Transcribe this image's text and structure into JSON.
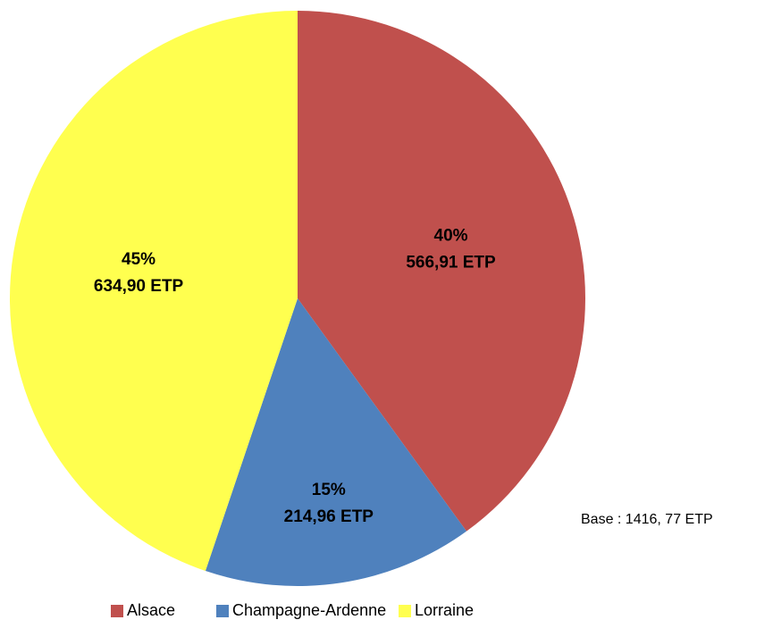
{
  "chart_data": {
    "type": "pie",
    "categories": [
      "Alsace",
      "Champagne-Ardenne",
      "Lorraine"
    ],
    "values": [
      566.91,
      214.96,
      634.9
    ],
    "value_labels": [
      "566,91 ETP",
      "214,96 ETP",
      "634,90 ETP"
    ],
    "percent_labels": [
      "40%",
      "15%",
      "45%"
    ],
    "colors": [
      "#c0504d",
      "#4f81bd",
      "#ffff4f"
    ],
    "annotation": "Base : 1416, 77 ETP",
    "legend": "bottom"
  }
}
